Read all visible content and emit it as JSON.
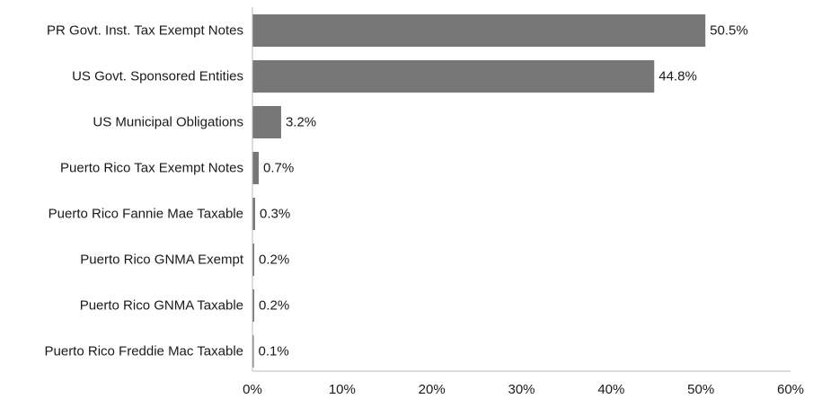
{
  "chart_data": {
    "type": "bar",
    "orientation": "horizontal",
    "categories": [
      "PR Govt. Inst. Tax Exempt Notes",
      "US Govt. Sponsored Entities",
      "US Municipal Obligations",
      "Puerto Rico Tax Exempt Notes",
      "Puerto Rico Fannie Mae Taxable",
      "Puerto Rico GNMA Exempt",
      "Puerto Rico GNMA Taxable",
      "Puerto Rico Freddie Mac Taxable"
    ],
    "values": [
      50.5,
      44.8,
      3.2,
      0.7,
      0.3,
      0.2,
      0.2,
      0.1
    ],
    "data_labels": [
      "50.5%",
      "44.8%",
      "3.2%",
      "0.7%",
      "0.3%",
      "0.2%",
      "0.2%",
      "0.1%"
    ],
    "xlim": [
      0,
      60
    ],
    "xticks": [
      0,
      10,
      20,
      30,
      40,
      50,
      60
    ],
    "xtick_labels": [
      "0%",
      "10%",
      "20%",
      "30%",
      "40%",
      "50%",
      "60%"
    ],
    "grid": false,
    "bar_color": "#777777"
  }
}
